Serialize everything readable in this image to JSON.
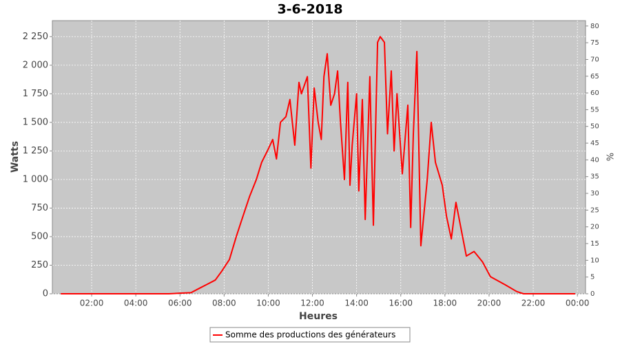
{
  "chart_data": {
    "type": "line",
    "title": "3-6-2018",
    "xlabel": "Heures",
    "ylabel": "Watts",
    "y2label": "%",
    "xlim": [
      0.22,
      24.37
    ],
    "xticks": [
      {
        "value": 2,
        "label": "02:00"
      },
      {
        "value": 4,
        "label": "04:00"
      },
      {
        "value": 6,
        "label": "06:00"
      },
      {
        "value": 8,
        "label": "08:00"
      },
      {
        "value": 10,
        "label": "10:00"
      },
      {
        "value": 12,
        "label": "12:00"
      },
      {
        "value": 14,
        "label": "14:00"
      },
      {
        "value": 16,
        "label": "16:00"
      },
      {
        "value": 18,
        "label": "18:00"
      },
      {
        "value": 20,
        "label": "20:00"
      },
      {
        "value": 22,
        "label": "22:00"
      },
      {
        "value": 24,
        "label": "00:00"
      }
    ],
    "ylim": [
      0,
      2390
    ],
    "yticks": [
      0,
      250,
      500,
      750,
      {
        "value": 1000,
        "label": "1 000"
      },
      {
        "value": 1250,
        "label": "1 250"
      },
      {
        "value": 1500,
        "label": "1 500"
      },
      {
        "value": 1750,
        "label": "1 750"
      },
      {
        "value": 2000,
        "label": "2 000"
      },
      {
        "value": 2250,
        "label": "2 250"
      }
    ],
    "y2lim": [
      0,
      81.6
    ],
    "y2ticks": [
      0,
      5,
      10,
      15,
      20,
      25,
      30,
      35,
      40,
      45,
      50,
      55,
      60,
      65,
      70,
      75,
      80
    ],
    "grid": true,
    "legend": "bottom",
    "x": [
      0.6,
      5.5,
      6.0,
      6.5,
      6.9,
      7.2,
      7.6,
      7.9,
      8.24,
      8.55,
      8.77,
      9.15,
      9.46,
      9.7,
      9.96,
      10.2,
      10.37,
      10.55,
      10.8,
      10.98,
      11.2,
      11.39,
      11.5,
      11.77,
      11.93,
      12.08,
      12.26,
      12.4,
      12.52,
      12.67,
      12.83,
      13.0,
      13.14,
      13.27,
      13.45,
      13.6,
      13.7,
      13.8,
      14.0,
      14.1,
      14.26,
      14.39,
      14.6,
      14.76,
      14.95,
      15.07,
      15.26,
      15.4,
      15.57,
      15.7,
      15.83,
      16.07,
      16.32,
      16.45,
      16.57,
      16.73,
      16.91,
      17.2,
      17.38,
      17.57,
      17.88,
      18.07,
      18.29,
      18.5,
      18.97,
      19.32,
      19.7,
      20.06,
      20.72,
      21.25,
      21.56,
      23.9
    ],
    "series": [
      {
        "name": "Somme des productions des  générateurs",
        "color": "#ff0000",
        "values": [
          0,
          0,
          5,
          10,
          50,
          80,
          120,
          200,
          300,
          500,
          630,
          850,
          1000,
          1150,
          1250,
          1350,
          1180,
          1500,
          1550,
          1700,
          1300,
          1850,
          1750,
          1900,
          1100,
          1800,
          1500,
          1350,
          1900,
          2100,
          1650,
          1750,
          1950,
          1500,
          1000,
          1850,
          950,
          1300,
          1750,
          900,
          1700,
          650,
          1900,
          600,
          2200,
          2250,
          2200,
          1400,
          1950,
          1250,
          1750,
          1050,
          1650,
          580,
          1400,
          2120,
          420,
          1000,
          1500,
          1150,
          950,
          680,
          480,
          800,
          330,
          370,
          280,
          150,
          80,
          20,
          0,
          0
        ]
      }
    ]
  }
}
